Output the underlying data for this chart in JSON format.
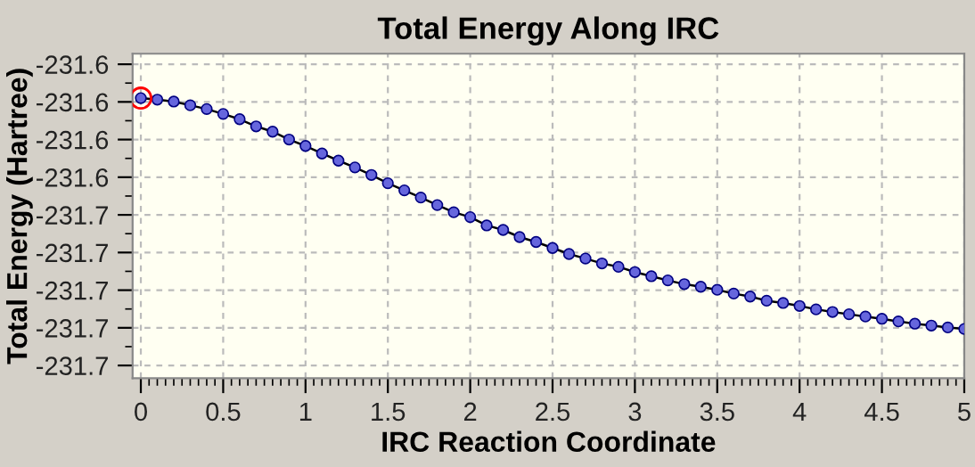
{
  "chart_data": {
    "type": "line",
    "title": "Total Energy Along IRC",
    "xlabel": "IRC Reaction Coordinate",
    "ylabel": "Total Energy (Hartree)",
    "x": [
      0,
      0.1,
      0.2,
      0.3,
      0.4,
      0.5,
      0.6,
      0.7,
      0.8,
      0.9,
      1.0,
      1.1,
      1.2,
      1.3,
      1.4,
      1.5,
      1.6,
      1.7,
      1.8,
      1.9,
      2.0,
      2.1,
      2.2,
      2.3,
      2.4,
      2.5,
      2.6,
      2.7,
      2.8,
      2.9,
      3.0,
      3.1,
      3.2,
      3.3,
      3.4,
      3.5,
      3.6,
      3.7,
      3.8,
      3.9,
      4.0,
      4.1,
      4.2,
      4.3,
      4.4,
      4.5,
      4.6,
      4.7,
      4.8,
      4.9,
      5.0
    ],
    "series": [
      {
        "color": "#6666dd",
        "marker": "circle",
        "values": [
          -231.619,
          -231.6194,
          -231.6199,
          -231.6209,
          -231.6219,
          -231.6232,
          -231.6246,
          -231.6265,
          -231.6279,
          -231.63,
          -231.6317,
          -231.6337,
          -231.6356,
          -231.6374,
          -231.6394,
          -231.6416,
          -231.6435,
          -231.6454,
          -231.6474,
          -231.6493,
          -231.6506,
          -231.6528,
          -231.654,
          -231.6559,
          -231.6572,
          -231.6588,
          -231.6604,
          -231.6616,
          -231.6629,
          -231.6638,
          -231.6652,
          -231.6663,
          -231.6674,
          -231.6684,
          -231.6691,
          -231.6699,
          -231.6709,
          -231.6717,
          -231.6728,
          -231.6734,
          -231.6742,
          -231.6751,
          -231.6758,
          -231.6764,
          -231.677,
          -231.6776,
          -231.6783,
          -231.6789,
          -231.6794,
          -231.6799,
          -231.6803
        ]
      },
      {
        "type": "scatter",
        "color": "#ff0000",
        "marker": "circle",
        "x": [
          0
        ],
        "values": [
          -231.619
        ]
      }
    ],
    "xlim": [
      -0.05,
      5.0
    ],
    "xticks": [
      0,
      0.5,
      1,
      1.5,
      2,
      2.5,
      3,
      3.5,
      4,
      4.5,
      5
    ],
    "ylim": [
      -231.6934,
      -231.6072
    ],
    "yticks": [
      {
        "value": -231.61,
        "label": "-231.6"
      },
      {
        "value": -231.62,
        "label": "-231.6"
      },
      {
        "value": -231.63,
        "label": "-231.6"
      },
      {
        "value": -231.64,
        "label": "-231.6"
      },
      {
        "value": -231.65,
        "label": "-231.7"
      },
      {
        "value": -231.66,
        "label": "-231.7"
      },
      {
        "value": -231.67,
        "label": "-231.7"
      },
      {
        "value": -231.68,
        "label": "-231.7"
      },
      {
        "value": -231.69,
        "label": "-231.7"
      }
    ],
    "grid": true,
    "line_style": "solid"
  }
}
